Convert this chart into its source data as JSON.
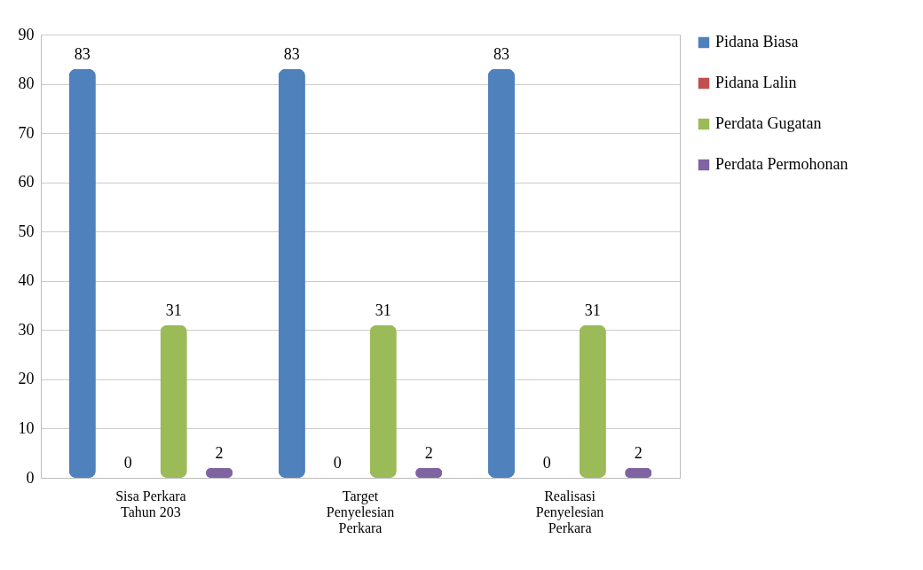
{
  "chart_data": {
    "type": "bar",
    "categories": [
      "Sisa Perkara Tahun 203",
      "Target Penyelesian Perkara",
      "Realisasi Penyelesian Perkara"
    ],
    "series": [
      {
        "name": "Pidana Biasa",
        "color": "#4f81bd",
        "values": [
          83,
          83,
          83
        ]
      },
      {
        "name": "Pidana Lalin",
        "color": "#c0504d",
        "values": [
          0,
          0,
          0
        ]
      },
      {
        "name": "Perdata Gugatan",
        "color": "#9bbb59",
        "values": [
          31,
          31,
          31
        ]
      },
      {
        "name": "Perdata Permohonan",
        "color": "#8064a2",
        "values": [
          2,
          2,
          2
        ]
      }
    ],
    "ylim": [
      0,
      90
    ],
    "yticks": [
      0,
      10,
      20,
      30,
      40,
      50,
      60,
      70,
      80,
      90
    ],
    "grid": "y",
    "legend": "right",
    "data_labels": true
  }
}
